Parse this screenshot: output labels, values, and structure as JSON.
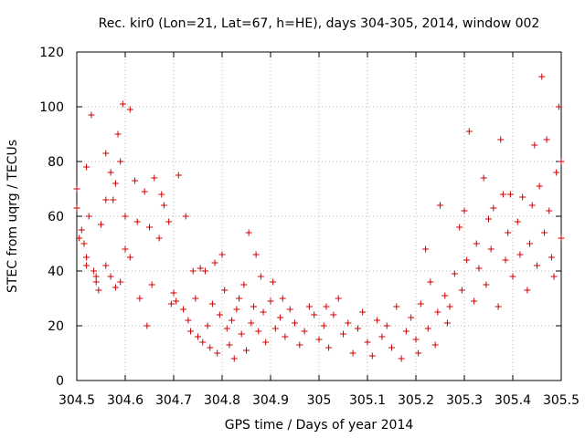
{
  "chart_data": {
    "type": "scatter",
    "title": "Rec. kir0 (Lon=21, Lat=67, h=HE), days 304-305, 2014, window 002",
    "xlabel": "GPS time / Days of year 2014",
    "ylabel": "STEC from uqrg / TECUs",
    "xlim": [
      304.5,
      305.5
    ],
    "ylim": [
      0,
      120
    ],
    "x_ticks": [
      "304.5",
      "304.6",
      "304.7",
      "304.8",
      "304.9",
      "305",
      "305.1",
      "305.2",
      "305.3",
      "305.4",
      "305.5"
    ],
    "y_ticks": [
      "0",
      "20",
      "40",
      "60",
      "80",
      "100",
      "120"
    ],
    "grid": true,
    "marker": "plus",
    "color": "#cc0000",
    "series": [
      {
        "points": [
          [
            304.5,
            70
          ],
          [
            304.5,
            63
          ],
          [
            304.51,
            55
          ],
          [
            304.505,
            52
          ],
          [
            304.515,
            50
          ],
          [
            304.52,
            78
          ],
          [
            304.53,
            97
          ],
          [
            304.525,
            60
          ],
          [
            304.52,
            45
          ],
          [
            304.52,
            42
          ],
          [
            304.535,
            40
          ],
          [
            304.54,
            38
          ],
          [
            304.54,
            36
          ],
          [
            304.545,
            33
          ],
          [
            304.55,
            57
          ],
          [
            304.56,
            83
          ],
          [
            304.56,
            66
          ],
          [
            304.57,
            76
          ],
          [
            304.575,
            66
          ],
          [
            304.58,
            72
          ],
          [
            304.585,
            90
          ],
          [
            304.59,
            80
          ],
          [
            304.595,
            101
          ],
          [
            304.61,
            99
          ],
          [
            304.6,
            60
          ],
          [
            304.56,
            42
          ],
          [
            304.57,
            38
          ],
          [
            304.58,
            34
          ],
          [
            304.59,
            36
          ],
          [
            304.6,
            48
          ],
          [
            304.61,
            45
          ],
          [
            304.62,
            73
          ],
          [
            304.625,
            58
          ],
          [
            304.63,
            30
          ],
          [
            304.64,
            69
          ],
          [
            304.645,
            20
          ],
          [
            304.65,
            56
          ],
          [
            304.655,
            35
          ],
          [
            304.66,
            74
          ],
          [
            304.67,
            52
          ],
          [
            304.675,
            68
          ],
          [
            304.68,
            64
          ],
          [
            304.69,
            58
          ],
          [
            304.695,
            28
          ],
          [
            304.7,
            32
          ],
          [
            304.705,
            29
          ],
          [
            304.71,
            75
          ],
          [
            304.72,
            26
          ],
          [
            304.725,
            60
          ],
          [
            304.73,
            22
          ],
          [
            304.735,
            18
          ],
          [
            304.74,
            40
          ],
          [
            304.745,
            30
          ],
          [
            304.75,
            16
          ],
          [
            304.755,
            41
          ],
          [
            304.76,
            14
          ],
          [
            304.765,
            40
          ],
          [
            304.77,
            20
          ],
          [
            304.775,
            12
          ],
          [
            304.78,
            28
          ],
          [
            304.785,
            43
          ],
          [
            304.79,
            10
          ],
          [
            304.795,
            24
          ],
          [
            304.8,
            46
          ],
          [
            304.805,
            33
          ],
          [
            304.81,
            19
          ],
          [
            304.815,
            13
          ],
          [
            304.82,
            22
          ],
          [
            304.825,
            8
          ],
          [
            304.83,
            26
          ],
          [
            304.835,
            30
          ],
          [
            304.84,
            17
          ],
          [
            304.845,
            35
          ],
          [
            304.85,
            11
          ],
          [
            304.855,
            54
          ],
          [
            304.86,
            21
          ],
          [
            304.865,
            27
          ],
          [
            304.87,
            46
          ],
          [
            304.875,
            18
          ],
          [
            304.88,
            38
          ],
          [
            304.885,
            25
          ],
          [
            304.89,
            14
          ],
          [
            304.9,
            29
          ],
          [
            304.905,
            36
          ],
          [
            304.91,
            19
          ],
          [
            304.92,
            23
          ],
          [
            304.925,
            30
          ],
          [
            304.93,
            16
          ],
          [
            304.94,
            26
          ],
          [
            304.95,
            21
          ],
          [
            304.96,
            13
          ],
          [
            304.97,
            18
          ],
          [
            304.98,
            27
          ],
          [
            304.99,
            24
          ],
          [
            305.0,
            15
          ],
          [
            305.01,
            20
          ],
          [
            305.015,
            27
          ],
          [
            305.02,
            12
          ],
          [
            305.03,
            24
          ],
          [
            305.04,
            30
          ],
          [
            305.05,
            17
          ],
          [
            305.06,
            21
          ],
          [
            305.07,
            10
          ],
          [
            305.08,
            19
          ],
          [
            305.09,
            25
          ],
          [
            305.1,
            14
          ],
          [
            305.11,
            9
          ],
          [
            305.12,
            22
          ],
          [
            305.13,
            16
          ],
          [
            305.14,
            20
          ],
          [
            305.15,
            12
          ],
          [
            305.16,
            27
          ],
          [
            305.17,
            8
          ],
          [
            305.18,
            18
          ],
          [
            305.19,
            23
          ],
          [
            305.2,
            15
          ],
          [
            305.205,
            10
          ],
          [
            305.21,
            28
          ],
          [
            305.22,
            48
          ],
          [
            305.225,
            19
          ],
          [
            305.23,
            36
          ],
          [
            305.24,
            13
          ],
          [
            305.245,
            25
          ],
          [
            305.25,
            64
          ],
          [
            305.26,
            31
          ],
          [
            305.265,
            21
          ],
          [
            305.27,
            27
          ],
          [
            305.28,
            39
          ],
          [
            305.29,
            56
          ],
          [
            305.295,
            33
          ],
          [
            305.3,
            62
          ],
          [
            305.305,
            44
          ],
          [
            305.31,
            91
          ],
          [
            305.32,
            29
          ],
          [
            305.325,
            50
          ],
          [
            305.33,
            41
          ],
          [
            305.34,
            74
          ],
          [
            305.345,
            35
          ],
          [
            305.35,
            59
          ],
          [
            305.355,
            48
          ],
          [
            305.36,
            63
          ],
          [
            305.37,
            27
          ],
          [
            305.375,
            88
          ],
          [
            305.38,
            68
          ],
          [
            305.385,
            44
          ],
          [
            305.39,
            54
          ],
          [
            305.395,
            68
          ],
          [
            305.4,
            38
          ],
          [
            305.41,
            58
          ],
          [
            305.415,
            46
          ],
          [
            305.42,
            67
          ],
          [
            305.43,
            33
          ],
          [
            305.435,
            50
          ],
          [
            305.44,
            64
          ],
          [
            305.445,
            86
          ],
          [
            305.45,
            42
          ],
          [
            305.455,
            71
          ],
          [
            305.46,
            111
          ],
          [
            305.465,
            54
          ],
          [
            305.47,
            88
          ],
          [
            305.475,
            62
          ],
          [
            305.48,
            45
          ],
          [
            305.485,
            38
          ],
          [
            305.49,
            76
          ],
          [
            305.495,
            100
          ],
          [
            305.5,
            52
          ],
          [
            305.5,
            80
          ]
        ]
      }
    ]
  }
}
